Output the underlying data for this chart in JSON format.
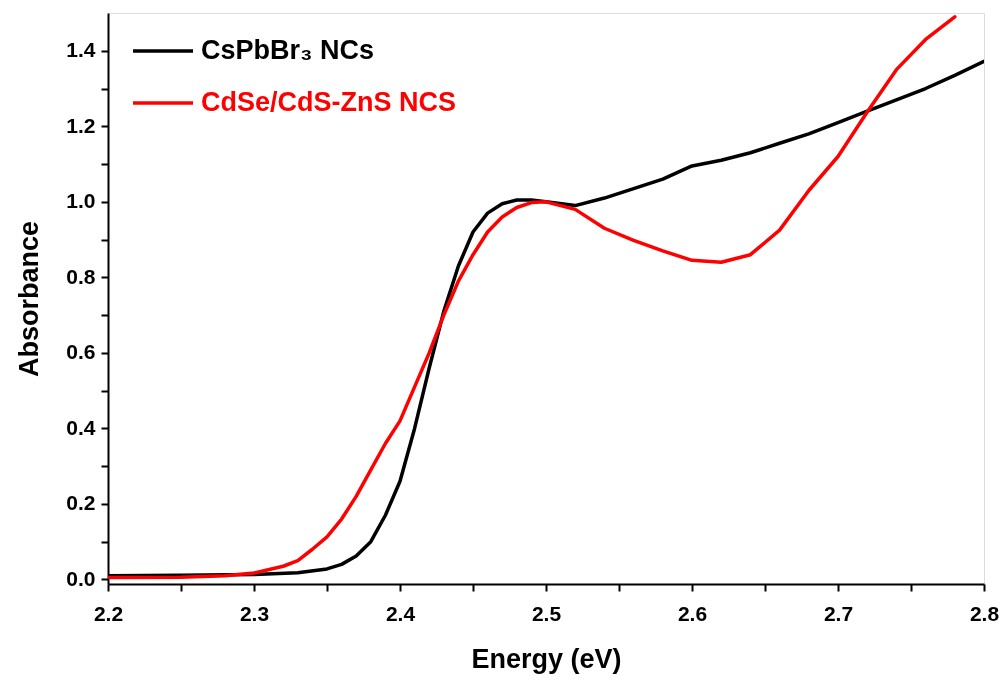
{
  "chart_data": {
    "type": "line",
    "xlabel": "Energy (eV)",
    "ylabel": "Absorbance",
    "xlim": [
      2.2,
      2.8
    ],
    "ylim": [
      -0.012,
      1.5
    ],
    "xticks": [
      {
        "value": 2.2,
        "label": "2.2"
      },
      {
        "value": 2.25,
        "label": null
      },
      {
        "value": 2.3,
        "label": "2.3"
      },
      {
        "value": 2.35,
        "label": null
      },
      {
        "value": 2.4,
        "label": "2.4"
      },
      {
        "value": 2.45,
        "label": null
      },
      {
        "value": 2.5,
        "label": "2.5"
      },
      {
        "value": 2.55,
        "label": null
      },
      {
        "value": 2.6,
        "label": "2.6"
      },
      {
        "value": 2.65,
        "label": null
      },
      {
        "value": 2.7,
        "label": "2.7"
      },
      {
        "value": 2.75,
        "label": null
      },
      {
        "value": 2.8,
        "label": "2.8"
      }
    ],
    "yticks": [
      {
        "value": 0,
        "label": "0.0"
      },
      {
        "value": 0.1,
        "label": null
      },
      {
        "value": 0.2,
        "label": "0.2"
      },
      {
        "value": 0.3,
        "label": null
      },
      {
        "value": 0.4,
        "label": "0.4"
      },
      {
        "value": 0.5,
        "label": null
      },
      {
        "value": 0.6,
        "label": "0.6"
      },
      {
        "value": 0.7,
        "label": null
      },
      {
        "value": 0.8,
        "label": "0.8"
      },
      {
        "value": 0.9,
        "label": null
      },
      {
        "value": 1.0,
        "label": "1.0"
      },
      {
        "value": 1.1,
        "label": null
      },
      {
        "value": 1.2,
        "label": "1.2"
      },
      {
        "value": 1.3,
        "label": null
      },
      {
        "value": 1.4,
        "label": "1.4"
      }
    ],
    "legend": "top left",
    "grid": false,
    "marker": "none",
    "line_style": "solid",
    "series": [
      {
        "name": "CsPbBr₃ NCs",
        "color": "#000000",
        "x": [
          2.2,
          2.25,
          2.3,
          2.33,
          2.35,
          2.36,
          2.37,
          2.38,
          2.39,
          2.4,
          2.41,
          2.42,
          2.43,
          2.44,
          2.45,
          2.46,
          2.47,
          2.48,
          2.49,
          2.5,
          2.52,
          2.54,
          2.56,
          2.58,
          2.6,
          2.62,
          2.64,
          2.66,
          2.68,
          2.7,
          2.72,
          2.74,
          2.76,
          2.78,
          2.8
        ],
        "values": [
          0.01,
          0.011,
          0.013,
          0.018,
          0.028,
          0.04,
          0.062,
          0.1,
          0.17,
          0.26,
          0.4,
          0.56,
          0.71,
          0.83,
          0.92,
          0.97,
          0.995,
          1.005,
          1.005,
          1.0,
          0.99,
          1.01,
          1.035,
          1.06,
          1.095,
          1.11,
          1.13,
          1.155,
          1.18,
          1.21,
          1.24,
          1.27,
          1.3,
          1.335,
          1.372
        ]
      },
      {
        "name": "CdSe/CdS-ZnS NCS",
        "color": "#ff0000",
        "x": [
          2.2,
          2.25,
          2.28,
          2.3,
          2.32,
          2.33,
          2.34,
          2.35,
          2.36,
          2.37,
          2.38,
          2.39,
          2.4,
          2.41,
          2.42,
          2.43,
          2.44,
          2.45,
          2.46,
          2.47,
          2.48,
          2.49,
          2.5,
          2.52,
          2.54,
          2.56,
          2.58,
          2.6,
          2.62,
          2.64,
          2.66,
          2.68,
          2.7,
          2.72,
          2.74,
          2.76,
          2.78
        ],
        "values": [
          0.005,
          0.006,
          0.01,
          0.017,
          0.035,
          0.05,
          0.08,
          0.113,
          0.16,
          0.22,
          0.29,
          0.36,
          0.42,
          0.51,
          0.6,
          0.7,
          0.79,
          0.86,
          0.92,
          0.96,
          0.985,
          0.998,
          1.0,
          0.98,
          0.93,
          0.898,
          0.87,
          0.845,
          0.84,
          0.86,
          0.925,
          1.03,
          1.12,
          1.238,
          1.35,
          1.43,
          1.49
        ]
      }
    ]
  }
}
